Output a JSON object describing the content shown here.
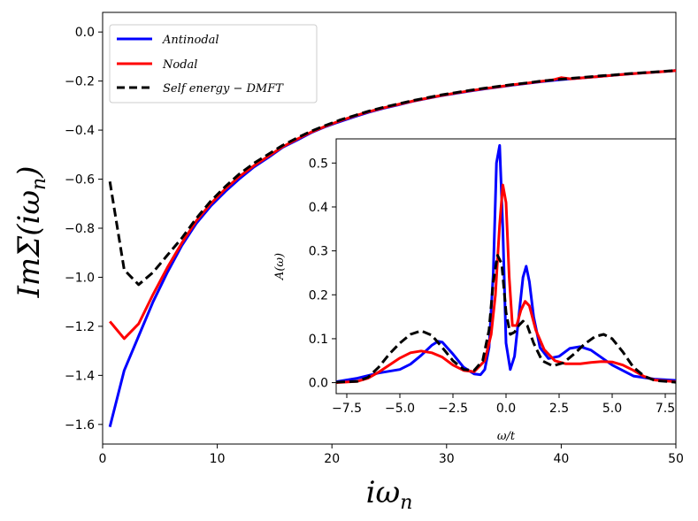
{
  "chart_data": [
    {
      "type": "line",
      "xlabel": "iω_n",
      "ylabel": "ImΣ(iω_n)",
      "xlim": [
        0,
        50
      ],
      "ylim": [
        -1.68,
        0.08
      ],
      "xticks": [
        0,
        10,
        20,
        30,
        40,
        50
      ],
      "xtick_labels": [
        "0",
        "10",
        "20",
        "30",
        "40",
        "50"
      ],
      "yticks": [
        0.0,
        -0.2,
        -0.4,
        -0.6,
        -0.8,
        -1.0,
        -1.2,
        -1.4,
        -1.6
      ],
      "ytick_labels": [
        "0.0",
        "−0.2",
        "−0.4",
        "−0.6",
        "−0.8",
        "−1.0",
        "−1.2",
        "−1.4",
        "−1.6"
      ],
      "grid": false,
      "legend_position": "top-left",
      "series": [
        {
          "name": "Antinodal",
          "color": "#0000ff",
          "dash": "solid",
          "x": [
            0.63,
            1.88,
            3.14,
            4.4,
            5.65,
            6.91,
            8.17,
            9.42,
            10.7,
            11.9,
            13.2,
            14.5,
            15.7,
            17.0,
            18.2,
            19.5,
            20.7,
            22.0,
            23.2,
            24.5,
            25.8,
            27.0,
            28.3,
            29.5,
            30.8,
            32.0,
            33.3,
            34.6,
            35.8,
            37.1,
            38.3,
            39.6,
            40.8,
            42.1,
            43.4,
            44.6,
            45.9,
            47.1,
            48.4,
            49.6,
            50.0
          ],
          "y": [
            -1.61,
            -1.38,
            -1.24,
            -1.1,
            -0.98,
            -0.87,
            -0.78,
            -0.71,
            -0.65,
            -0.6,
            -0.55,
            -0.51,
            -0.47,
            -0.44,
            -0.41,
            -0.385,
            -0.365,
            -0.345,
            -0.327,
            -0.311,
            -0.297,
            -0.283,
            -0.271,
            -0.26,
            -0.25,
            -0.241,
            -0.232,
            -0.224,
            -0.216,
            -0.209,
            -0.202,
            -0.196,
            -0.191,
            -0.186,
            -0.181,
            -0.176,
            -0.171,
            -0.167,
            -0.163,
            -0.159,
            -0.157
          ]
        },
        {
          "name": "Nodal",
          "color": "#ff0000",
          "dash": "solid",
          "x": [
            0.63,
            1.88,
            3.14,
            4.4,
            5.65,
            6.91,
            8.17,
            9.42,
            10.7,
            11.9,
            13.2,
            14.5,
            15.7,
            17.0,
            18.2,
            19.5,
            20.7,
            22.0,
            23.2,
            24.5,
            25.8,
            27.0,
            28.3,
            29.5,
            30.8,
            32.0,
            33.3,
            34.6,
            35.8,
            37.1,
            38.3,
            39.3,
            40.0,
            40.8,
            42.1,
            43.4,
            44.6,
            45.9,
            47.1,
            48.4,
            49.6,
            50.0
          ],
          "y": [
            -1.18,
            -1.25,
            -1.19,
            -1.07,
            -0.96,
            -0.86,
            -0.77,
            -0.7,
            -0.64,
            -0.59,
            -0.545,
            -0.505,
            -0.468,
            -0.436,
            -0.408,
            -0.383,
            -0.362,
            -0.342,
            -0.325,
            -0.309,
            -0.295,
            -0.282,
            -0.27,
            -0.259,
            -0.249,
            -0.24,
            -0.231,
            -0.223,
            -0.215,
            -0.208,
            -0.201,
            -0.195,
            -0.186,
            -0.191,
            -0.186,
            -0.181,
            -0.176,
            -0.171,
            -0.167,
            -0.163,
            -0.159,
            -0.157
          ]
        },
        {
          "name": "Self energy − DMFT",
          "color": "#000000",
          "dash": "dashed",
          "x": [
            0.63,
            1.88,
            3.14,
            4.4,
            5.65,
            6.91,
            8.17,
            9.42,
            10.7,
            11.9,
            13.2,
            14.5,
            15.7,
            17.0,
            18.2,
            19.5,
            20.7,
            22.0,
            23.2,
            24.5,
            25.8,
            27.0,
            28.3,
            29.5,
            30.8,
            32.0,
            33.3,
            34.6,
            35.8,
            37.1,
            38.3,
            39.6,
            40.8,
            42.1,
            43.4,
            44.6,
            45.9,
            47.1,
            48.4,
            49.6,
            50.0
          ],
          "y": [
            -0.61,
            -0.97,
            -1.03,
            -0.98,
            -0.91,
            -0.84,
            -0.76,
            -0.69,
            -0.63,
            -0.58,
            -0.535,
            -0.497,
            -0.462,
            -0.431,
            -0.404,
            -0.38,
            -0.359,
            -0.34,
            -0.323,
            -0.307,
            -0.293,
            -0.28,
            -0.268,
            -0.257,
            -0.247,
            -0.238,
            -0.229,
            -0.221,
            -0.214,
            -0.207,
            -0.2,
            -0.194,
            -0.189,
            -0.184,
            -0.179,
            -0.175,
            -0.17,
            -0.166,
            -0.162,
            -0.158,
            -0.156
          ]
        }
      ]
    },
    {
      "type": "line",
      "xlabel": "ω/t",
      "ylabel": "A(ω)",
      "xlim": [
        -8,
        8
      ],
      "ylim": [
        -0.025,
        0.555
      ],
      "xticks": [
        -7.5,
        -5.0,
        -2.5,
        0.0,
        2.5,
        5.0,
        7.5
      ],
      "xtick_labels": [
        "−7.5",
        "−5.0",
        "−2.5",
        "0.0",
        "2.5",
        "5.0",
        "7.5"
      ],
      "yticks": [
        0.0,
        0.1,
        0.2,
        0.3,
        0.4,
        0.5
      ],
      "ytick_labels": [
        "0.0",
        "0.1",
        "0.2",
        "0.3",
        "0.4",
        "0.5"
      ],
      "grid": false,
      "series": [
        {
          "name": "Antinodal",
          "color": "#0000ff",
          "dash": "solid",
          "x": [
            -8,
            -7,
            -6,
            -5,
            -4.5,
            -4,
            -3.5,
            -3.2,
            -3,
            -2.5,
            -2,
            -1.5,
            -1.2,
            -1,
            -0.8,
            -0.6,
            -0.45,
            -0.3,
            -0.15,
            0,
            0.2,
            0.4,
            0.6,
            0.8,
            0.95,
            1.1,
            1.3,
            1.6,
            2,
            2.5,
            3,
            3.5,
            4,
            5,
            6,
            7,
            8
          ],
          "y": [
            0.002,
            0.01,
            0.022,
            0.03,
            0.042,
            0.062,
            0.085,
            0.094,
            0.092,
            0.065,
            0.035,
            0.02,
            0.018,
            0.03,
            0.08,
            0.25,
            0.5,
            0.54,
            0.35,
            0.09,
            0.03,
            0.06,
            0.15,
            0.24,
            0.265,
            0.23,
            0.15,
            0.08,
            0.055,
            0.06,
            0.078,
            0.082,
            0.074,
            0.04,
            0.015,
            0.008,
            0.005
          ]
        },
        {
          "name": "Nodal",
          "color": "#ff0000",
          "dash": "solid",
          "x": [
            -8,
            -7,
            -6.5,
            -6,
            -5.5,
            -5,
            -4.5,
            -4,
            -3.5,
            -3,
            -2.5,
            -2,
            -1.5,
            -1,
            -0.7,
            -0.5,
            -0.3,
            -0.15,
            0,
            0.15,
            0.3,
            0.5,
            0.7,
            0.9,
            1.1,
            1.4,
            1.8,
            2.3,
            2.8,
            3.5,
            4,
            4.5,
            5,
            5.5,
            6,
            6.5,
            7,
            8
          ],
          "y": [
            0.0,
            0.003,
            0.01,
            0.024,
            0.04,
            0.056,
            0.068,
            0.072,
            0.068,
            0.058,
            0.04,
            0.028,
            0.025,
            0.05,
            0.11,
            0.2,
            0.36,
            0.45,
            0.41,
            0.24,
            0.13,
            0.13,
            0.165,
            0.185,
            0.175,
            0.12,
            0.075,
            0.05,
            0.043,
            0.043,
            0.046,
            0.048,
            0.047,
            0.04,
            0.028,
            0.014,
            0.006,
            0.002
          ]
        },
        {
          "name": "Self energy − DMFT",
          "color": "#000000",
          "dash": "dashed",
          "x": [
            -8,
            -7,
            -6.5,
            -6,
            -5.5,
            -5,
            -4.5,
            -4,
            -3.5,
            -3,
            -2.5,
            -2,
            -1.5,
            -1.1,
            -0.8,
            -0.6,
            -0.4,
            -0.2,
            0,
            0.2,
            0.4,
            0.6,
            0.8,
            1,
            1.3,
            1.7,
            2.2,
            2.7,
            3.2,
            3.7,
            4.2,
            4.6,
            5,
            5.5,
            6,
            6.5,
            7,
            8
          ],
          "y": [
            0.001,
            0.003,
            0.012,
            0.035,
            0.065,
            0.09,
            0.11,
            0.118,
            0.108,
            0.08,
            0.05,
            0.03,
            0.028,
            0.05,
            0.12,
            0.23,
            0.29,
            0.27,
            0.16,
            0.11,
            0.115,
            0.13,
            0.14,
            0.13,
            0.09,
            0.05,
            0.038,
            0.045,
            0.065,
            0.088,
            0.105,
            0.11,
            0.1,
            0.07,
            0.035,
            0.015,
            0.005,
            0.001
          ]
        }
      ]
    }
  ]
}
